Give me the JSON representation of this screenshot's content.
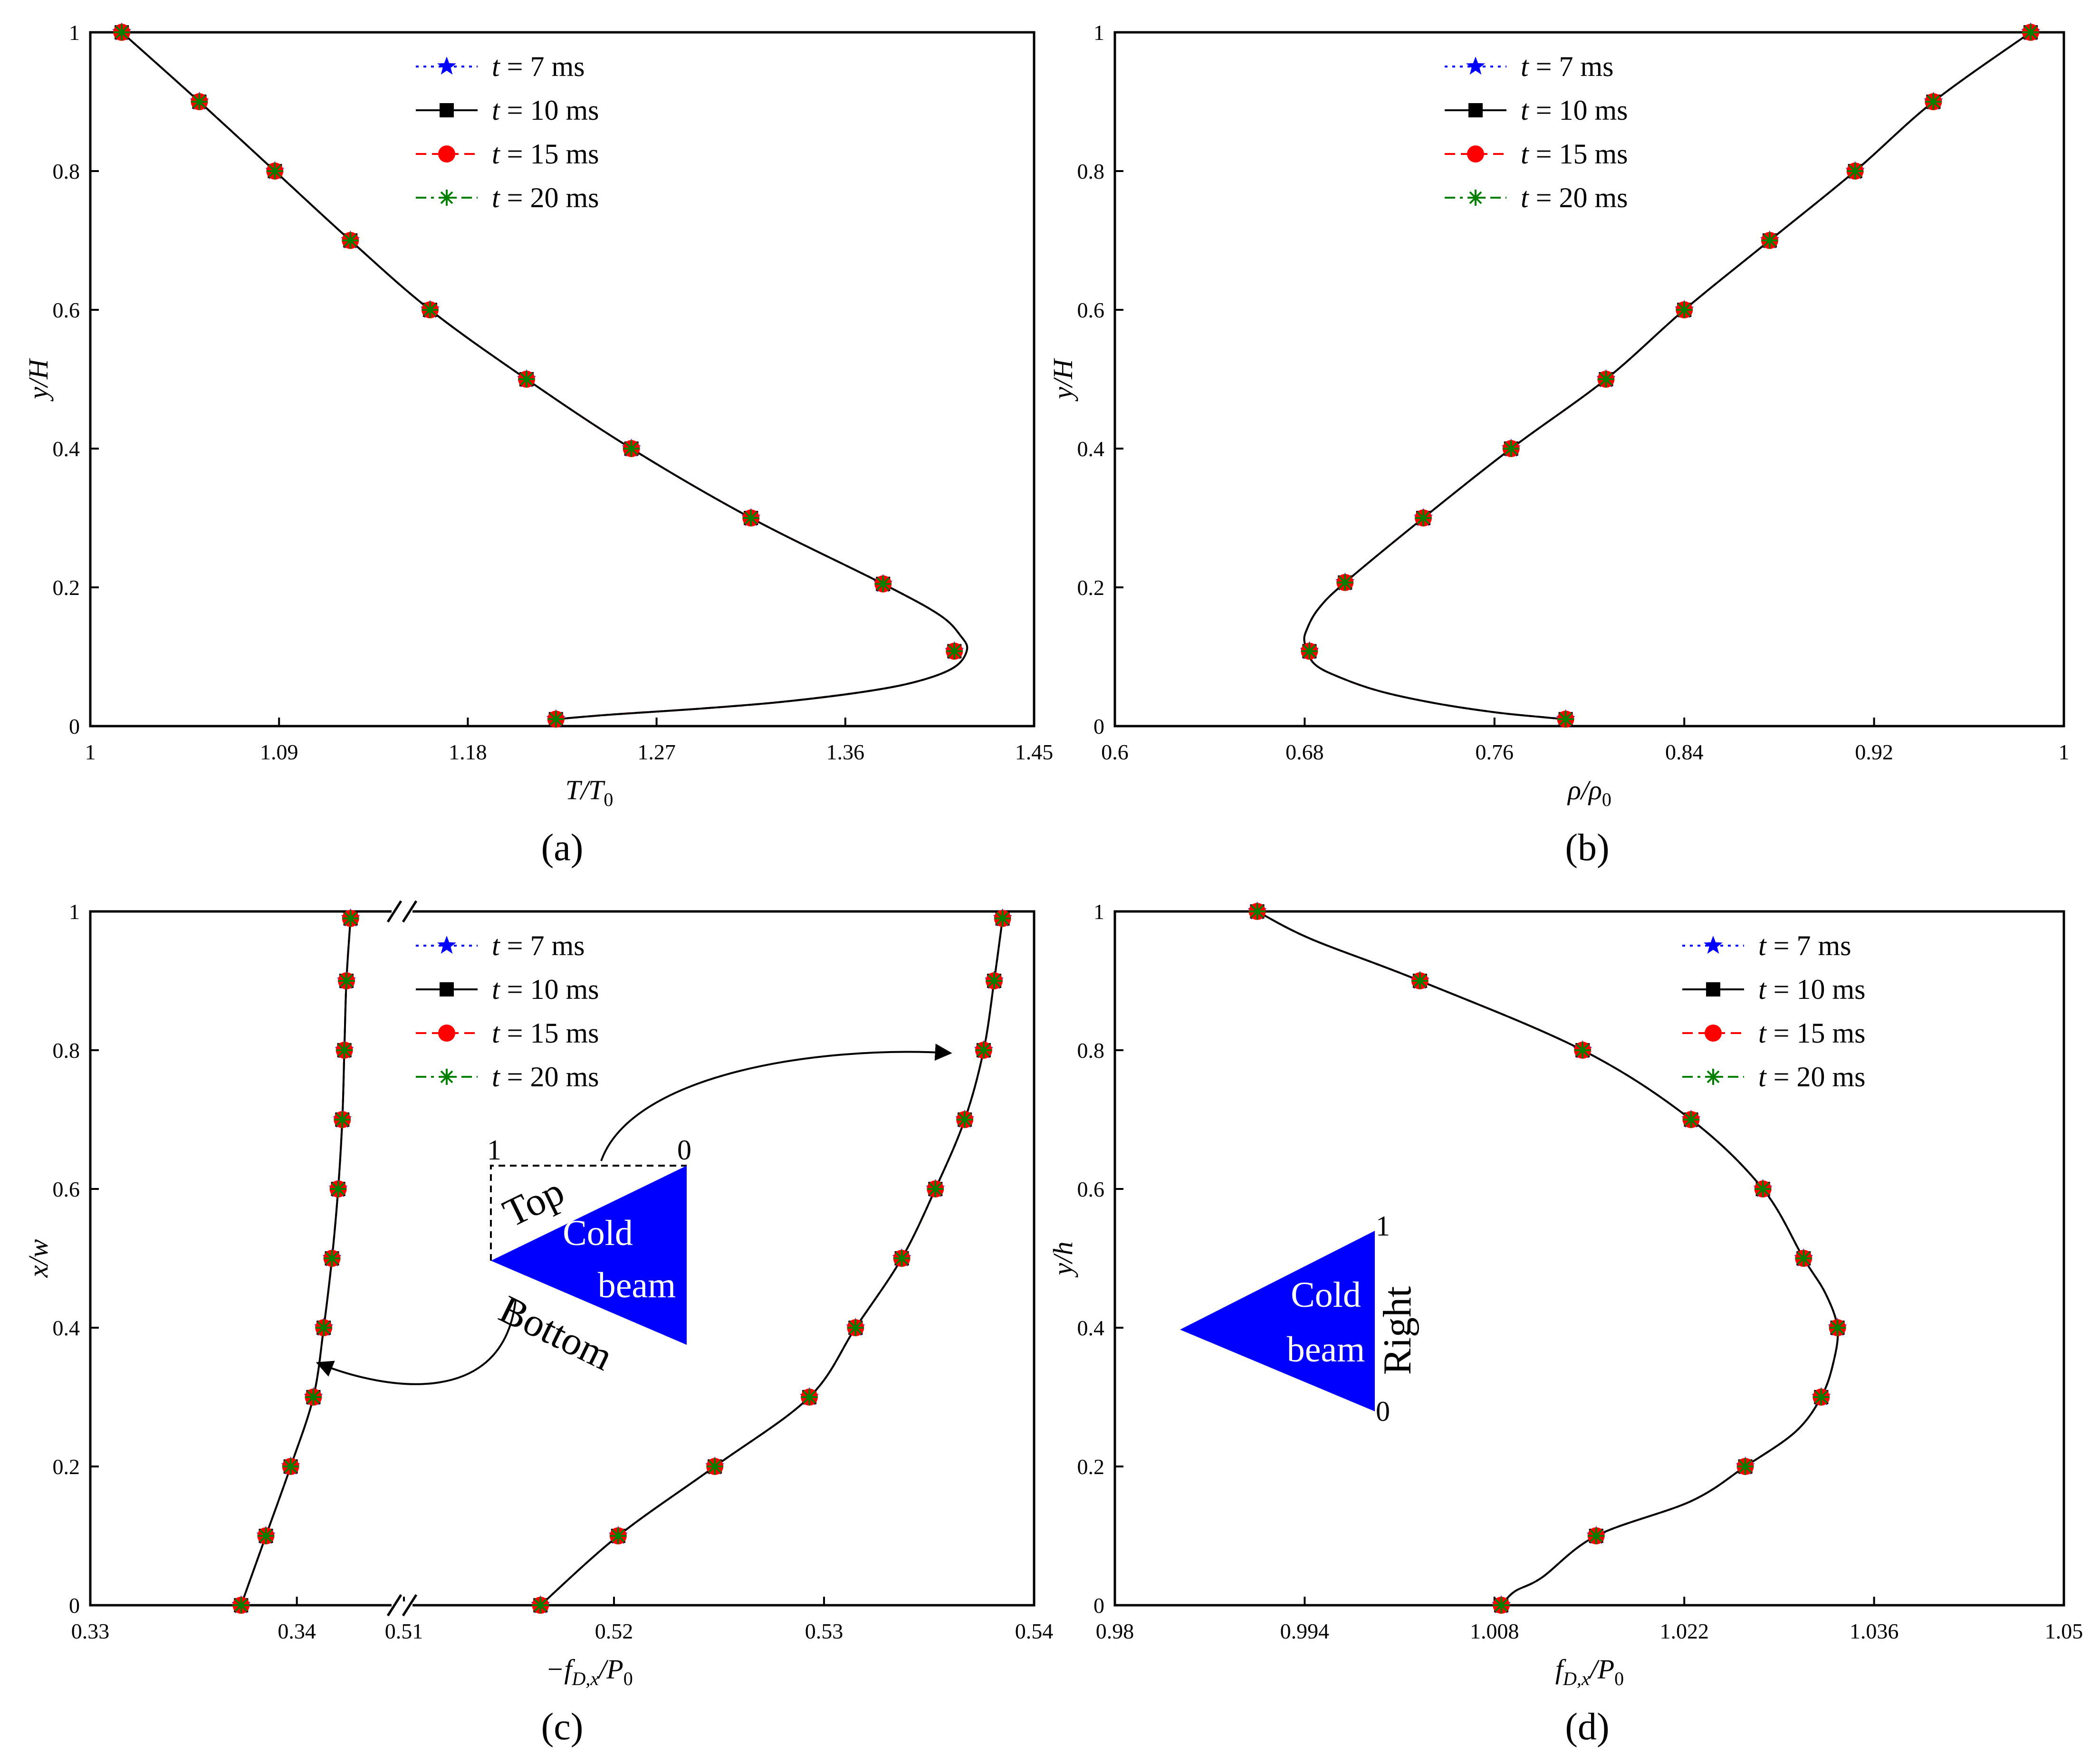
{
  "legend": {
    "entries": [
      {
        "prefix": "t",
        "value": "= 7 ms",
        "color": "#0000ff",
        "marker": "star"
      },
      {
        "prefix": "t",
        "value": "= 10 ms",
        "color": "#000000",
        "marker": "square"
      },
      {
        "prefix": "t",
        "value": "= 15 ms",
        "color": "#ff0000",
        "marker": "circle"
      },
      {
        "prefix": "t",
        "value": "= 20 ms",
        "color": "#008000",
        "marker": "asterisk"
      }
    ]
  },
  "panels": {
    "a": {
      "caption": "(a)",
      "xlabel_main": "T",
      "xlabel_sub_prefix": "/T",
      "xlabel_sub": "0",
      "ylabel_main": "y",
      "ylabel_rest": "/H"
    },
    "b": {
      "caption": "(b)",
      "xlabel_main": "ρ",
      "xlabel_sub_prefix": "/ρ",
      "xlabel_sub": "0",
      "ylabel_main": "y",
      "ylabel_rest": "/H"
    },
    "c": {
      "caption": "(c)",
      "xlabel_pre": "−f",
      "xlabel_sub": "D,x",
      "xlabel_post": "/P",
      "xlabel_sub2": "0",
      "ylabel_main": "x",
      "ylabel_rest": "/w",
      "inset": {
        "top_label": "Top",
        "bottom_label": "Bottom",
        "beam_line1": "Cold",
        "beam_line2": "beam",
        "tick_left": "1",
        "tick_right": "0"
      }
    },
    "d": {
      "caption": "(d)",
      "xlabel_pre": "f",
      "xlabel_sub": "D,x",
      "xlabel_post": "/P",
      "xlabel_sub2": "0",
      "ylabel_main": "y",
      "ylabel_rest": "/h",
      "inset": {
        "side_label": "Right",
        "beam_line1": "Cold",
        "beam_line2": "beam",
        "tick_top": "1",
        "tick_bottom": "0"
      }
    }
  },
  "chart_data": [
    {
      "id": "a",
      "type": "line",
      "xlabel": "T/T0",
      "ylabel": "y/H",
      "xlim": [
        1,
        1.45
      ],
      "ylim": [
        0,
        1
      ],
      "xticks": [
        "1",
        "1.09",
        "1.18",
        "1.27",
        "1.36",
        "1.45"
      ],
      "yticks": [
        "0",
        "0.2",
        "0.4",
        "0.6",
        "0.8",
        "1"
      ],
      "curve": {
        "x": [
          1.015,
          1.052,
          1.088,
          1.124,
          1.162,
          1.208,
          1.258,
          1.315,
          1.378,
          1.405,
          1.415,
          1.418,
          1.412,
          1.395,
          1.37,
          1.33,
          1.29,
          1.25,
          1.222
        ],
        "y": [
          1.0,
          0.9,
          0.8,
          0.7,
          0.6,
          0.5,
          0.4,
          0.3,
          0.205,
          0.16,
          0.13,
          0.11,
          0.085,
          0.065,
          0.05,
          0.035,
          0.025,
          0.017,
          0.01
        ]
      },
      "markers": {
        "x": [
          1.015,
          1.052,
          1.088,
          1.124,
          1.162,
          1.208,
          1.258,
          1.315,
          1.378,
          1.412,
          1.222
        ],
        "y": [
          1.0,
          0.9,
          0.8,
          0.7,
          0.6,
          0.5,
          0.4,
          0.3,
          0.205,
          0.108,
          0.01
        ]
      },
      "legend_position": "top-center"
    },
    {
      "id": "b",
      "type": "line",
      "xlabel": "ρ/ρ0",
      "ylabel": "y/H",
      "xlim": [
        0.6,
        1
      ],
      "ylim": [
        0,
        1
      ],
      "xticks": [
        "0.6",
        "0.68",
        "0.76",
        "0.84",
        "0.92",
        "1"
      ],
      "yticks": [
        "0",
        "0.2",
        "0.4",
        "0.6",
        "0.8",
        "1"
      ],
      "curve": {
        "x": [
          0.986,
          0.945,
          0.912,
          0.876,
          0.84,
          0.807,
          0.767,
          0.73,
          0.697,
          0.686,
          0.681,
          0.68,
          0.684,
          0.695,
          0.712,
          0.735,
          0.76,
          0.78,
          0.79
        ],
        "y": [
          1.0,
          0.9,
          0.8,
          0.7,
          0.6,
          0.5,
          0.4,
          0.3,
          0.207,
          0.17,
          0.14,
          0.12,
          0.09,
          0.07,
          0.05,
          0.033,
          0.02,
          0.013,
          0.01
        ]
      },
      "markers": {
        "x": [
          0.986,
          0.945,
          0.912,
          0.876,
          0.84,
          0.807,
          0.767,
          0.73,
          0.697,
          0.682,
          0.79
        ],
        "y": [
          1.0,
          0.9,
          0.8,
          0.7,
          0.6,
          0.5,
          0.4,
          0.3,
          0.207,
          0.108,
          0.01
        ]
      },
      "legend_position": "top-center"
    },
    {
      "id": "c",
      "type": "line",
      "xlabel": "−fD,x/P0",
      "ylabel": "x/w",
      "xlim_left": [
        0.33,
        0.345
      ],
      "xlim_right": [
        0.51,
        0.54
      ],
      "axis_break": true,
      "ylim": [
        0,
        1
      ],
      "xticks_left": [
        "0.33",
        "0.34"
      ],
      "xticks_right": [
        "0.51",
        "0.52",
        "0.53",
        "0.54"
      ],
      "yticks": [
        "0",
        "0.2",
        "0.4",
        "0.6",
        "0.8",
        "1"
      ],
      "series_bottom": {
        "x": [
          0.3373,
          0.3385,
          0.3397,
          0.3408,
          0.3413,
          0.3417,
          0.342,
          0.3422,
          0.3423,
          0.3424,
          0.3426
        ],
        "y": [
          0.0,
          0.1,
          0.2,
          0.3,
          0.4,
          0.5,
          0.6,
          0.7,
          0.8,
          0.9,
          0.99
        ]
      },
      "series_top": {
        "x": [
          0.5165,
          0.5202,
          0.5248,
          0.5293,
          0.5315,
          0.5337,
          0.5353,
          0.5367,
          0.5376,
          0.5381,
          0.5385
        ],
        "y": [
          0.0,
          0.1,
          0.2,
          0.3,
          0.4,
          0.5,
          0.6,
          0.7,
          0.8,
          0.9,
          0.99
        ]
      },
      "legend_position": "top-center"
    },
    {
      "id": "d",
      "type": "line",
      "xlabel": "fD,x/P0",
      "ylabel": "y/h",
      "xlim": [
        0.98,
        1.05
      ],
      "ylim": [
        0,
        1
      ],
      "xticks": [
        "0.98",
        "0.994",
        "1.008",
        "1.022",
        "1.036",
        "1.05"
      ],
      "yticks": [
        "0",
        "0.2",
        "0.4",
        "0.6",
        "0.8",
        "1"
      ],
      "curve": {
        "x": [
          0.9905,
          0.9945,
          1.0025,
          1.0145,
          1.0225,
          1.0278,
          1.0308,
          1.0324,
          1.0333,
          1.033,
          1.0321,
          1.0302,
          1.0265,
          1.0225,
          1.0155,
          1.0115,
          1.0095,
          1.0085
        ],
        "y": [
          1.0,
          0.96,
          0.9,
          0.8,
          0.7,
          0.6,
          0.5,
          0.45,
          0.4,
          0.35,
          0.3,
          0.25,
          0.2,
          0.15,
          0.1,
          0.04,
          0.02,
          0.0
        ]
      },
      "markers": {
        "x": [
          0.9905,
          1.0025,
          1.0145,
          1.0225,
          1.0278,
          1.0308,
          1.0333,
          1.0321,
          1.0265,
          1.0155,
          1.0085
        ],
        "y": [
          1.0,
          0.9,
          0.8,
          0.7,
          0.6,
          0.5,
          0.4,
          0.3,
          0.2,
          0.1,
          0.0
        ]
      },
      "legend_position": "top-right"
    }
  ]
}
